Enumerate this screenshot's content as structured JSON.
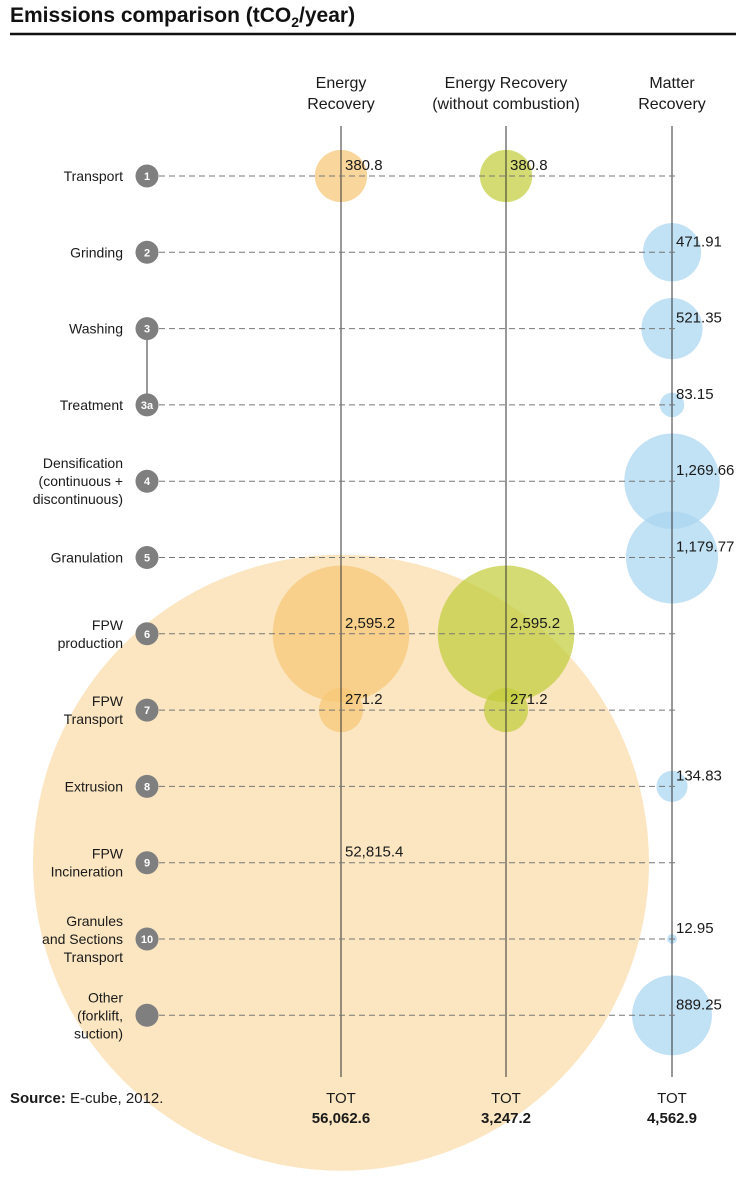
{
  "chart_data": {
    "type": "bubble-matrix",
    "title": "Emissions comparison (tCO2/year)",
    "title_parts": {
      "before": "Emissions comparison (tCO",
      "sub": "2",
      "after": "/year)"
    },
    "columns": [
      {
        "key": "energy",
        "label_lines": [
          "Energy",
          "Recovery"
        ],
        "total_label": "TOT",
        "total": "56,062.6",
        "color": "#f7c776"
      },
      {
        "key": "energy_nc",
        "label_lines": [
          "Energy Recovery",
          "(without combustion)"
        ],
        "total_label": "TOT",
        "total": "3,247.2",
        "color": "#c2cd3c"
      },
      {
        "key": "matter",
        "label_lines": [
          "Matter",
          "Recovery"
        ],
        "total_label": "TOT",
        "total": "4,562.9",
        "color": "#a9d6f0"
      }
    ],
    "rows": [
      {
        "step": "1",
        "label_lines": [
          "Transport"
        ],
        "values": {
          "energy": 380.8,
          "energy_nc": 380.8
        },
        "labels": {
          "energy": "380.8",
          "energy_nc": "380.8"
        }
      },
      {
        "step": "2",
        "label_lines": [
          "Grinding"
        ],
        "values": {
          "matter": 471.91
        },
        "labels": {
          "matter": "471.91"
        }
      },
      {
        "step": "3",
        "label_lines": [
          "Washing"
        ],
        "values": {
          "matter": 521.35
        },
        "labels": {
          "matter": "521.35"
        }
      },
      {
        "step": "3a",
        "label_lines": [
          "Treatment"
        ],
        "values": {
          "matter": 83.15
        },
        "labels": {
          "matter": "83.15"
        }
      },
      {
        "step": "4",
        "label_lines": [
          "Densification",
          "(continuous +",
          "discontinuous)"
        ],
        "values": {
          "matter": 1269.66
        },
        "labels": {
          "matter": "1,269.66"
        }
      },
      {
        "step": "5",
        "label_lines": [
          "Granulation"
        ],
        "values": {
          "matter": 1179.77
        },
        "labels": {
          "matter": "1,179.77"
        }
      },
      {
        "step": "6",
        "label_lines": [
          "FPW",
          "production"
        ],
        "values": {
          "energy": 2595.2,
          "energy_nc": 2595.2
        },
        "labels": {
          "energy": "2,595.2",
          "energy_nc": "2,595.2"
        }
      },
      {
        "step": "7",
        "label_lines": [
          "FPW",
          "Transport"
        ],
        "values": {
          "energy": 271.2,
          "energy_nc": 271.2
        },
        "labels": {
          "energy": "271.2",
          "energy_nc": "271.2"
        }
      },
      {
        "step": "8",
        "label_lines": [
          "Extrusion"
        ],
        "values": {
          "matter": 134.83
        },
        "labels": {
          "matter": "134.83"
        }
      },
      {
        "step": "9",
        "label_lines": [
          "FPW",
          "Incineration"
        ],
        "values": {
          "energy": 52815.4
        },
        "labels": {
          "energy": "52,815.4"
        }
      },
      {
        "step": "10",
        "label_lines": [
          "Granules",
          "and Sections",
          "Transport"
        ],
        "values": {
          "matter": 12.95
        },
        "labels": {
          "matter": "12.95"
        }
      },
      {
        "step": "",
        "label_lines": [
          "Other",
          "(forklift,",
          "suction)"
        ],
        "values": {
          "matter": 889.25
        },
        "labels": {
          "matter": "889.25"
        }
      }
    ],
    "legend": "none",
    "grid": false
  },
  "source": {
    "bold": "Source:",
    "text": " E-cube, 2012."
  },
  "colors": {
    "step_marker": "#7f7f7f",
    "dash_line": "#777777",
    "axis_line": "#333333",
    "title_rule": "#111111"
  }
}
